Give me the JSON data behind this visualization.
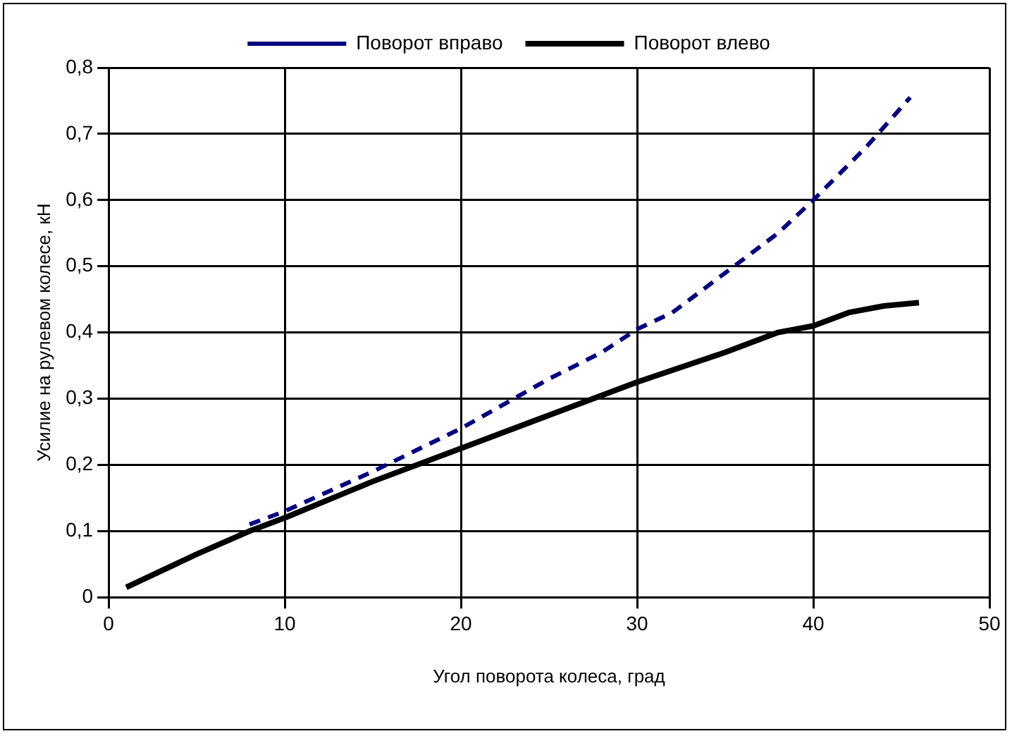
{
  "chart_data": {
    "type": "line",
    "xlabel": "Угол поворота колеса, град",
    "ylabel": "Усилие на рулевом колесе, кН",
    "xlim": [
      0,
      50
    ],
    "xticks": [
      0,
      10,
      20,
      30,
      40,
      50
    ],
    "ylim": [
      0,
      0.8
    ],
    "yticks": [
      {
        "value": 0,
        "label": "0"
      },
      {
        "value": 0.1,
        "label": "0,1"
      },
      {
        "value": 0.2,
        "label": "0,2"
      },
      {
        "value": 0.3,
        "label": "0,3"
      },
      {
        "value": 0.4,
        "label": "0,4"
      },
      {
        "value": 0.5,
        "label": "0,5"
      },
      {
        "value": 0.6,
        "label": "0,6"
      },
      {
        "value": 0.7,
        "label": "0,7"
      },
      {
        "value": 0.8,
        "label": "0,8"
      }
    ],
    "grid": true,
    "legend": "top",
    "marker": "none",
    "series": [
      {
        "name": "Поворот вправо",
        "color": "#000080",
        "line_style": "dashed",
        "x": [
          8,
          10,
          15,
          20,
          25,
          28,
          30,
          32,
          35,
          38,
          40,
          43,
          45.5
        ],
        "values": [
          0.11,
          0.13,
          0.19,
          0.255,
          0.33,
          0.37,
          0.405,
          0.43,
          0.49,
          0.55,
          0.6,
          0.68,
          0.755
        ]
      },
      {
        "name": "Поворот влево",
        "color": "#000000",
        "line_style": "solid",
        "x": [
          1,
          5,
          8,
          10,
          15,
          20,
          25,
          30,
          35,
          38,
          40,
          42,
          44,
          46
        ],
        "values": [
          0.015,
          0.065,
          0.1,
          0.12,
          0.175,
          0.225,
          0.275,
          0.325,
          0.37,
          0.4,
          0.41,
          0.43,
          0.44,
          0.445
        ]
      }
    ]
  }
}
